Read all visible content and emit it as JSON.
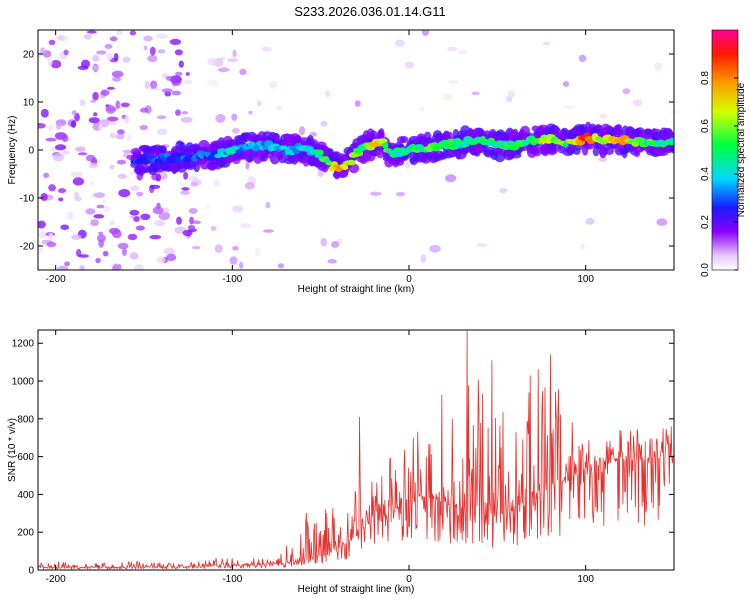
{
  "title": "S233.2026.036.01.14.G11",
  "chart_data": [
    {
      "type": "heatmap",
      "name": "spectrogram",
      "xlabel": "Height of straight line (km)",
      "ylabel": "Frequency (Hz)",
      "xlim": [
        -210,
        150
      ],
      "ylim": [
        -25,
        25
      ],
      "x_ticks": [
        -200,
        -100,
        0,
        100
      ],
      "y_ticks": [
        -20,
        -10,
        0,
        10,
        20
      ],
      "colorbar": {
        "label": "Normalized spectral amplitude",
        "range": [
          0,
          1
        ],
        "ticks": [
          0.0,
          0.2,
          0.4,
          0.6,
          0.8
        ],
        "tick_labels": [
          "0.0",
          "0.2",
          "0.4",
          "0.6",
          "0.8"
        ]
      },
      "ridge": {
        "x": [
          -150,
          -130,
          -110,
          -100,
          -90,
          -80,
          -70,
          -60,
          -50,
          -45,
          -40,
          -35,
          -30,
          -25,
          -20,
          -15,
          -10,
          0,
          10,
          20,
          30,
          40,
          50,
          60,
          70,
          80,
          90,
          100,
          110,
          120,
          130,
          140,
          150
        ],
        "freq": [
          -2,
          -1.5,
          -1,
          0,
          0.5,
          1,
          0,
          0.5,
          -1,
          -3,
          -4,
          -3,
          -1,
          0.5,
          1.5,
          1.5,
          -1,
          0,
          0.5,
          1,
          1.5,
          2,
          1,
          1,
          2,
          2.5,
          1.5,
          2.5,
          2,
          2,
          1.5,
          1.5,
          1.5
        ],
        "amplitude": [
          0.3,
          0.35,
          0.4,
          0.45,
          0.4,
          0.4,
          0.45,
          0.45,
          0.55,
          0.6,
          0.9,
          0.75,
          0.65,
          0.55,
          0.9,
          0.7,
          0.5,
          0.55,
          0.6,
          0.6,
          0.55,
          0.55,
          0.55,
          0.55,
          0.6,
          0.7,
          0.6,
          0.95,
          0.65,
          0.9,
          0.6,
          0.55,
          0.55
        ]
      }
    },
    {
      "type": "line",
      "name": "snr",
      "xlabel": "Height of straight line (km)",
      "ylabel": "SNR (10 * v/v)",
      "xlim": [
        -210,
        150
      ],
      "ylim": [
        0,
        1270
      ],
      "x_ticks": [
        -200,
        -100,
        0,
        100
      ],
      "y_ticks": [
        0,
        200,
        400,
        600,
        800,
        1000,
        1200
      ],
      "color": "#e8302e",
      "envelope": {
        "x": [
          -210,
          -120,
          -100,
          -90,
          -80,
          -70,
          -60,
          -50,
          -40,
          -30,
          -25,
          -20,
          -10,
          0,
          10,
          20,
          30,
          40,
          50,
          60,
          70,
          80,
          90,
          100,
          110,
          120,
          130,
          140,
          150
        ],
        "base": [
          12,
          15,
          25,
          25,
          30,
          35,
          45,
          70,
          110,
          170,
          230,
          260,
          300,
          350,
          380,
          360,
          330,
          300,
          290,
          300,
          330,
          370,
          470,
          530,
          560,
          580,
          580,
          590,
          600
        ],
        "peak": [
          45,
          45,
          100,
          80,
          70,
          120,
          300,
          330,
          340,
          480,
          520,
          540,
          610,
          660,
          850,
          1100,
          1240,
          1080,
          1120,
          1000,
          1100,
          1140,
          820,
          700,
          660,
          650,
          680,
          700,
          730
        ]
      },
      "spikes": [
        {
          "x": -28,
          "y": 810
        },
        {
          "x": 33,
          "y": 1265
        },
        {
          "x": 80,
          "y": 1140
        },
        {
          "x": 47,
          "y": 1110
        }
      ]
    }
  ]
}
